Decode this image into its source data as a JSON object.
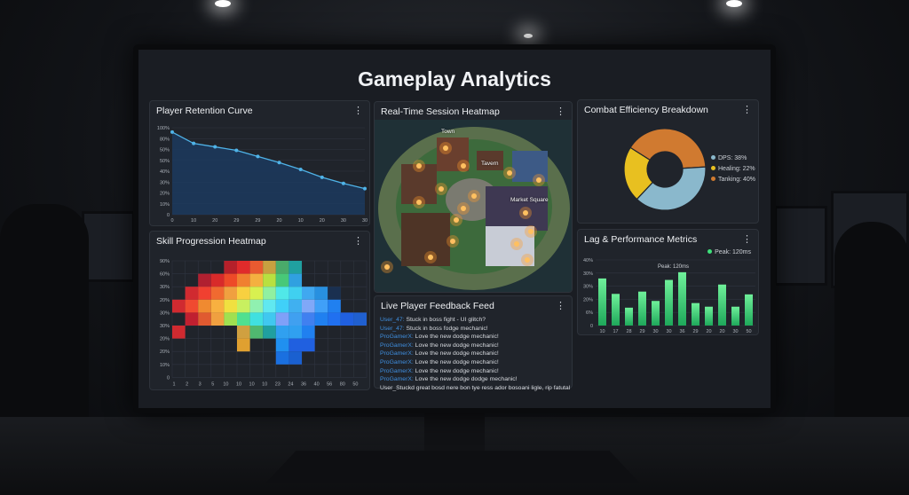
{
  "dashboard": {
    "title": "Gameplay Analytics"
  },
  "colors": {
    "accent_line": "#4fb3e8",
    "bar_green": "#3ee07a",
    "feedback_user": "#3f8fe0"
  },
  "retention": {
    "title": "Player Retention Curve",
    "menu_icon": "kebab-icon",
    "chart_data": {
      "type": "area",
      "x_labels": [
        "0",
        "10",
        "20",
        "29",
        "29",
        "20",
        "10",
        "20",
        "30",
        "30"
      ],
      "y_tick_labels": [
        "100%",
        "80%",
        "50%",
        "50%",
        "40%",
        "30%",
        "20%",
        "10%",
        "0"
      ],
      "values": [
        95,
        82,
        78,
        74,
        67,
        60,
        52,
        43,
        36,
        30
      ],
      "ylim": [
        0,
        100
      ],
      "grid": true
    }
  },
  "skill": {
    "title": "Skill Progression Heatmap",
    "menu_icon": "kebab-icon",
    "chart_data": {
      "type": "heatmap",
      "x_labels": [
        "1",
        "2",
        "3",
        "5",
        "10",
        "10",
        "10",
        "10",
        "23",
        "24",
        "36",
        "40",
        "56",
        "80",
        "50"
      ],
      "y_labels": [
        "90%",
        "60%",
        "30%",
        "20%",
        "30%",
        "30%",
        "20%",
        "20%",
        "10%",
        "0"
      ],
      "cells": [
        [
          null,
          null,
          null,
          null,
          "#b5202a",
          "#e02b2b",
          "#e85a30",
          "#c8a040",
          "#4aaa6a",
          "#20a0a0",
          null,
          null,
          null,
          null,
          null
        ],
        [
          null,
          null,
          "#b02030",
          "#d82a2a",
          "#ee4a28",
          "#f08030",
          "#f4b040",
          "#b8e040",
          "#48c878",
          "#30a0e0",
          null,
          null,
          null,
          null,
          null
        ],
        [
          null,
          "#d02a30",
          "#f04030",
          "#f06a30",
          "#f0a040",
          "#f8d040",
          "#d8f050",
          "#90f0a0",
          "#50e8e8",
          "#40d0f0",
          "#40a8f0",
          "#2890e0",
          "#1a3050",
          null,
          null
        ],
        [
          "#d02a30",
          "#f04a30",
          "#f08a30",
          "#f8b040",
          "#f0e040",
          "#c8f060",
          "#90f0b0",
          "#60e8f0",
          "#40d0f8",
          "#40b0f0",
          "#80a8f8",
          "#40a0f8",
          "#2080f0",
          null,
          null
        ],
        [
          null,
          "#c02030",
          "#e05a30",
          "#f0a040",
          "#a0e050",
          "#50e090",
          "#40e0e0",
          "#40c8f0",
          "#80a0f8",
          "#40a0f0",
          "#4080f0",
          "#2080f0",
          "#2070f0",
          "#2060e0",
          "#2060d0"
        ],
        [
          "#d02a30",
          null,
          null,
          null,
          null,
          "#d0a040",
          "#50b870",
          "#20a0a0",
          "#30a0f0",
          "#30a0f0",
          "#2080f0",
          null,
          null,
          null,
          null
        ],
        [
          null,
          null,
          null,
          null,
          null,
          "#e0a030",
          null,
          null,
          "#2090f0",
          "#2060e0",
          "#2060e0",
          null,
          null,
          null,
          null
        ],
        [
          null,
          null,
          null,
          null,
          null,
          null,
          null,
          null,
          "#1a70e0",
          "#1a60d0",
          null,
          null,
          null,
          null,
          null
        ]
      ],
      "grid": true
    }
  },
  "map": {
    "title": "Real-Time Session Heatmap",
    "menu_icon": "kebab-icon",
    "labels": [
      "Town",
      "Tavern",
      "Market Square"
    ]
  },
  "feedback": {
    "title": "Live Player Feedback Feed",
    "menu_icon": "kebab-icon",
    "entries": [
      {
        "user": "User_47:",
        "msg": "Stuck in boss fight - UI glitch?"
      },
      {
        "user": "User_47:",
        "msg": "Stuck in boss fodge mechanic!"
      },
      {
        "user": "ProGamerX:",
        "msg": "Love the new dodge mechanic!"
      },
      {
        "user": "ProGamerX:",
        "msg": "Love the new dodge mechanic!"
      },
      {
        "user": "ProGamerX:",
        "msg": "Love the new dodge mechanic!"
      },
      {
        "user": "ProGamerX:",
        "msg": "Love the new dodge mechanic!"
      },
      {
        "user": "ProGamerX:",
        "msg": "Love the new dodge mechanic!"
      },
      {
        "user": "ProGamerX:",
        "msg": "Love the new dodge dodge mechanic!"
      },
      {
        "user": "",
        "msg": "User_Stuckd great bosd nere bon tye ress ador bosoani ligle, rip fatutal"
      }
    ]
  },
  "combat": {
    "title": "Combat Efficiency Breakdown",
    "menu_icon": "kebab-icon",
    "chart_data": {
      "type": "pie",
      "donut": true,
      "slices": [
        {
          "name": "DPS",
          "label": "DPS: 38%",
          "value": 38,
          "color": "#8ab8cc"
        },
        {
          "name": "Healing",
          "label": "Healing: 22%",
          "value": 22,
          "color": "#e8c020"
        },
        {
          "name": "Tanking",
          "label": "Tanking: 40%",
          "value": 40,
          "color": "#d07a30"
        }
      ]
    }
  },
  "lag": {
    "title": "Lag & Performance Metrics",
    "menu_icon": "kebab-icon",
    "legend": "Peak: 120ms",
    "annotation": "Peak: 120ms",
    "chart_data": {
      "type": "bar",
      "categories": [
        "10",
        "17",
        "28",
        "29",
        "30",
        "30",
        "36",
        "29",
        "20",
        "20",
        "30",
        "50"
      ],
      "values": [
        28.7,
        19.3,
        10.9,
        20.7,
        15,
        27.8,
        32.5,
        13.7,
        11.5,
        25,
        11.5,
        19
      ],
      "y_tick_labels": [
        "40%",
        "30%",
        "30%",
        "20%",
        "6%",
        "0"
      ],
      "ylim": [
        0,
        40
      ],
      "grid": true
    }
  }
}
